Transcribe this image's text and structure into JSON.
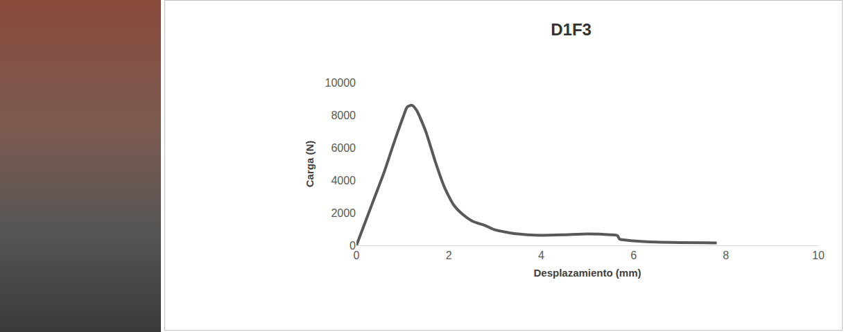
{
  "chart_data": {
    "type": "line",
    "title": "D1F3",
    "x_label": "Desplazamiento (mm)",
    "y_label": "Carga (N)",
    "x": [
      0,
      0.2,
      0.4,
      0.6,
      0.8,
      1.0,
      1.1,
      1.2,
      1.3,
      1.5,
      1.7,
      1.9,
      2.1,
      2.3,
      2.5,
      2.8,
      3.0,
      3.5,
      4.0,
      4.5,
      5.0,
      5.5,
      5.65,
      5.7,
      6.0,
      6.5,
      7.0,
      7.8
    ],
    "values": [
      0,
      1500,
      3000,
      4500,
      6200,
      7800,
      8500,
      8600,
      8300,
      7000,
      5200,
      3600,
      2500,
      1900,
      1500,
      1200,
      950,
      700,
      620,
      650,
      700,
      650,
      600,
      380,
      280,
      200,
      170,
      150
    ],
    "color": "#595959",
    "xlim": [
      0,
      10
    ],
    "xticks": [
      0,
      2,
      4,
      6,
      8,
      10
    ],
    "ylim": [
      0,
      10000
    ],
    "yticks": [
      0,
      2000,
      4000,
      6000,
      8000,
      10000
    ],
    "grid": false
  }
}
